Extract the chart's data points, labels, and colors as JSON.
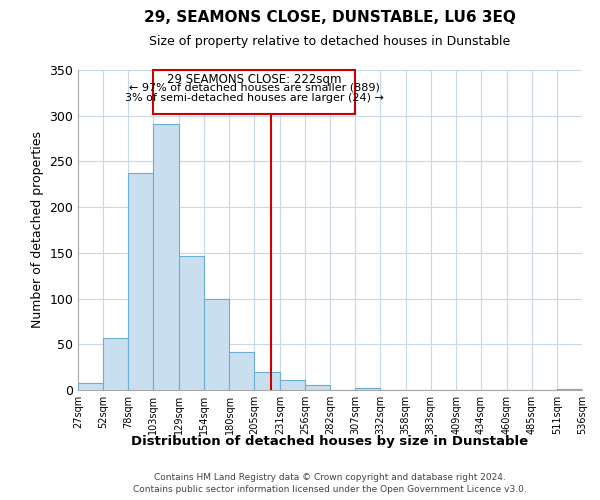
{
  "title": "29, SEAMONS CLOSE, DUNSTABLE, LU6 3EQ",
  "subtitle": "Size of property relative to detached houses in Dunstable",
  "xlabel": "Distribution of detached houses by size in Dunstable",
  "ylabel": "Number of detached properties",
  "bar_color": "#c9dff0",
  "bar_edge_color": "#6aaed6",
  "background_color": "#ffffff",
  "grid_color": "#c8d8e8",
  "vline_x": 222,
  "vline_color": "#cc0000",
  "bin_edges": [
    27,
    52,
    78,
    103,
    129,
    154,
    180,
    205,
    231,
    256,
    282,
    307,
    332,
    358,
    383,
    409,
    434,
    460,
    485,
    511,
    536
  ],
  "bin_counts": [
    8,
    57,
    237,
    291,
    147,
    100,
    42,
    20,
    11,
    5,
    0,
    2,
    0,
    0,
    0,
    0,
    0,
    0,
    0,
    1
  ],
  "ylim": [
    0,
    350
  ],
  "yticks": [
    0,
    50,
    100,
    150,
    200,
    250,
    300,
    350
  ],
  "annotation_title": "29 SEAMONS CLOSE: 222sqm",
  "annotation_line1": "← 97% of detached houses are smaller (889)",
  "annotation_line2": "3% of semi-detached houses are larger (24) →",
  "footnote1": "Contains HM Land Registry data © Crown copyright and database right 2024.",
  "footnote2": "Contains public sector information licensed under the Open Government Licence v3.0."
}
